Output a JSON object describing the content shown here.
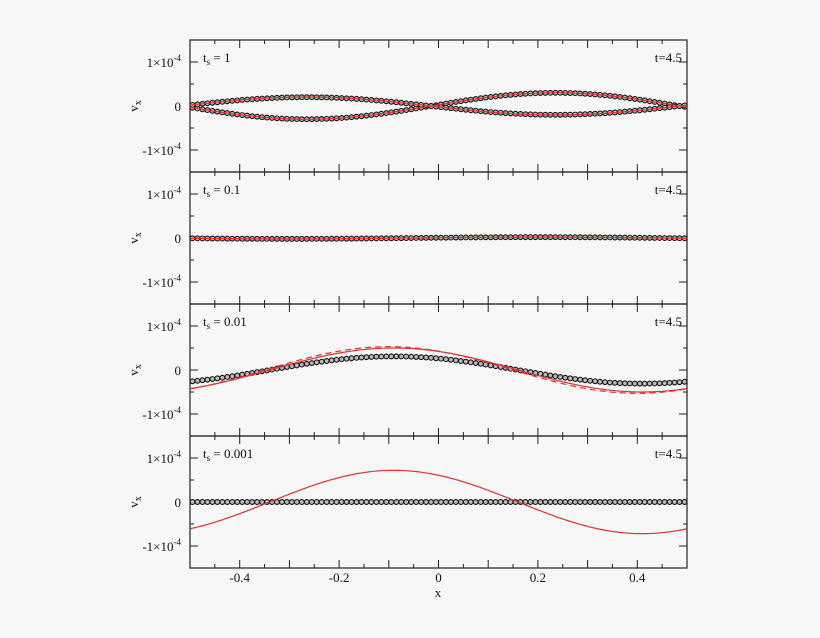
{
  "chart_data": {
    "type": "scatter",
    "xlabel": "x",
    "ylabel": "v",
    "ylabel_subscript": "x",
    "xlim": [
      -0.5,
      0.5
    ],
    "ylim": [
      -0.00015,
      0.00015
    ],
    "x_ticks": [
      -0.4,
      -0.2,
      0,
      0.2,
      0.4
    ],
    "x_tick_labels": [
      "-0.4",
      "-0.2",
      "0",
      "0.2",
      "0.4"
    ],
    "y_ticks": [
      0.0001,
      0,
      -0.0001
    ],
    "y_tick_labels": [
      "1×10",
      "0",
      "-1×10"
    ],
    "y_tick_exponent": "-4",
    "grid": false,
    "panels": [
      {
        "label": "t",
        "label_sub": "s",
        "label_value": "= 1",
        "time_label": "t=4.5",
        "red_curves": [
          {
            "style": "solid",
            "amplitude": 3e-05,
            "phase_x": 0.235
          },
          {
            "style": "solid",
            "amplitude": 3e-05,
            "phase_x": 0.235,
            "sign": -1,
            "scale": 0.68
          }
        ],
        "dot_series": [
          {
            "amplitude": 3e-05,
            "phase_x": 0.235,
            "sign": 1
          },
          {
            "amplitude": 2e-05,
            "phase_x": 0.235,
            "sign": -1
          }
        ]
      },
      {
        "label": "t",
        "label_sub": "s",
        "label_value": "= 0.1",
        "time_label": "t=4.5",
        "red_curves": [
          {
            "style": "solid",
            "amplitude": 2e-06,
            "phase_x": 0.2
          }
        ],
        "dot_series": [
          {
            "amplitude": 2e-06,
            "phase_x": 0.2,
            "sign": 1
          }
        ]
      },
      {
        "label": "t",
        "label_sub": "s",
        "label_value": "= 0.01",
        "time_label": "t=4.5",
        "red_curves": [
          {
            "style": "solid",
            "amplitude": 5e-05,
            "phase_x": -0.09
          },
          {
            "style": "dashed",
            "amplitude": 5.3e-05,
            "phase_x": -0.1
          }
        ],
        "dot_series": [
          {
            "amplitude": 3.1e-05,
            "phase_x": -0.09,
            "sign": 1
          }
        ]
      },
      {
        "label": "t",
        "label_sub": "s",
        "label_value": "= 0.001",
        "time_label": "t=4.5",
        "red_curves": [
          {
            "style": "solid",
            "amplitude": 7.2e-05,
            "phase_x": -0.09
          }
        ],
        "dot_series": [
          {
            "amplitude": 0.0,
            "phase_x": 0.0,
            "sign": 1
          }
        ]
      }
    ]
  }
}
